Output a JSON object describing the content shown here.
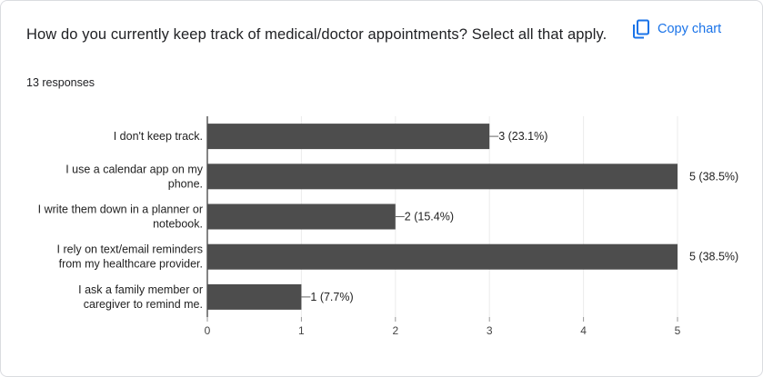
{
  "question": {
    "title": "How do you currently keep track of medical/doctor appointments? Select all that apply.",
    "responses": "13 responses"
  },
  "toolbar": {
    "copy_label": "Copy chart",
    "copy_icon": "copy-icon"
  },
  "colors": {
    "bar": "#4d4d4d",
    "accent": "#1a73e8",
    "grid": "#ebebeb",
    "axis": "#333333"
  },
  "chart_data": {
    "type": "bar",
    "orientation": "horizontal",
    "categories": [
      [
        "I don't keep track."
      ],
      [
        "I use a calendar app on my",
        "phone."
      ],
      [
        "I write them down in a planner or",
        "notebook."
      ],
      [
        "I rely on text/email reminders",
        "from my healthcare provider."
      ],
      [
        "I ask a family member or",
        "caregiver to remind me."
      ]
    ],
    "values": [
      3,
      5,
      2,
      5,
      1
    ],
    "data_labels": [
      "3 (23.1%)",
      "5 (38.5%)",
      "2 (15.4%)",
      "5 (38.5%)",
      "1 (7.7%)"
    ],
    "xlim": [
      0,
      5
    ],
    "xticks": [
      "0",
      "1",
      "2",
      "3",
      "4",
      "5"
    ],
    "grid": true
  }
}
